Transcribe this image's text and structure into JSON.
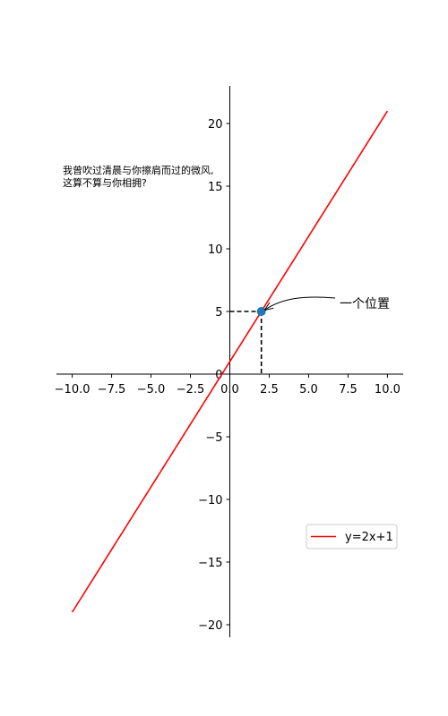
{
  "chart_data": {
    "type": "line",
    "series": [
      {
        "name": "y=2x+1",
        "color": "#ff0000",
        "x": [
          -10,
          10
        ],
        "y": [
          -19,
          21
        ]
      }
    ],
    "xlim": [
      -11,
      11
    ],
    "ylim": [
      -21,
      23
    ],
    "x_ticks": [
      "−10.0",
      "−7.5",
      "−5.0",
      "−2.5",
      "0.0",
      "2.5",
      "5.0",
      "7.5",
      "10.0"
    ],
    "x_tick_values": [
      -10,
      -7.5,
      -5,
      -2.5,
      0,
      2.5,
      5,
      7.5,
      10
    ],
    "y_ticks": [
      "−20",
      "−15",
      "−10",
      "−5",
      "0",
      "5",
      "10",
      "15",
      "20"
    ],
    "y_tick_values": [
      -20,
      -15,
      -10,
      -5,
      0,
      5,
      10,
      15,
      20
    ],
    "highlight_point": {
      "x": 2,
      "y": 5,
      "color": "#1f77b4"
    },
    "annotations": {
      "point_label": "一个位置",
      "text_line1": "我曾吹过清晨与你擦肩而过的微风,",
      "text_line2": "这算不算与你相拥?"
    },
    "legend_placement": "lower-right",
    "spines": "centered at origin",
    "grid": false
  }
}
